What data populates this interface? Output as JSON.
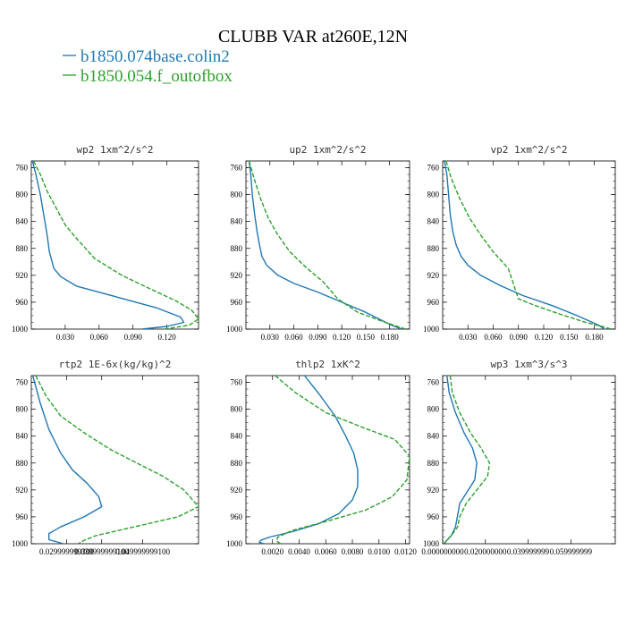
{
  "figure": {
    "title": "CLUBB VAR at260E,12N",
    "legend": [
      {
        "label": "b1850.074base.colin2",
        "color": "#1f77b4"
      },
      {
        "label": "b1850.054.f_outofbox",
        "color": "#2ca02c"
      }
    ]
  },
  "chart_data": [
    {
      "type": "line",
      "title": "wp2  1xm^2/s^2",
      "ylim": [
        1000,
        750
      ],
      "yticks": [
        760,
        800,
        840,
        880,
        920,
        960,
        1000
      ],
      "ytick_labels": [
        "760",
        "800",
        "840",
        "880",
        "920",
        "960",
        "1000"
      ],
      "xlim": [
        0,
        0.148
      ],
      "xticks": [
        0.03,
        0.06,
        0.09,
        0.12
      ],
      "xtick_labels": [
        "0.030",
        "0.060",
        "0.090",
        "0.120"
      ],
      "series": [
        {
          "name": "b1850.074base.colin2",
          "color": "#1f77b4",
          "dash": "",
          "x": [
            0.001,
            0.004,
            0.008,
            0.011,
            0.014,
            0.016,
            0.02,
            0.026,
            0.04,
            0.075,
            0.11,
            0.132,
            0.135,
            0.12,
            0.098
          ],
          "y": [
            750,
            770,
            800,
            830,
            860,
            885,
            910,
            922,
            936,
            952,
            968,
            982,
            990,
            996,
            1000
          ]
        },
        {
          "name": "b1850.054.f_outofbox",
          "color": "#2ca02c",
          "dash": "5,2",
          "x": [
            0.002,
            0.008,
            0.014,
            0.022,
            0.03,
            0.04,
            0.056,
            0.08,
            0.105,
            0.128,
            0.142,
            0.148,
            0.14,
            0.118
          ],
          "y": [
            750,
            770,
            795,
            820,
            845,
            865,
            895,
            920,
            940,
            958,
            972,
            985,
            994,
            1000
          ]
        }
      ]
    },
    {
      "type": "line",
      "title": "up2  1xm^2/s^2",
      "ylim": [
        1000,
        750
      ],
      "yticks": [
        760,
        800,
        840,
        880,
        920,
        960,
        1000
      ],
      "ytick_labels": [
        "760",
        "800",
        "840",
        "880",
        "920",
        "960",
        "1000"
      ],
      "xlim": [
        0,
        0.205
      ],
      "xticks": [
        0.03,
        0.06,
        0.09,
        0.12,
        0.15,
        0.18
      ],
      "xtick_labels": [
        "0.030",
        "0.060",
        "0.090",
        "0.120",
        "0.150",
        "0.180"
      ],
      "series": [
        {
          "name": "b1850.074base.colin2",
          "color": "#1f77b4",
          "dash": "",
          "x": [
            0.004,
            0.006,
            0.008,
            0.011,
            0.014,
            0.017,
            0.02,
            0.026,
            0.04,
            0.06,
            0.09,
            0.12,
            0.15,
            0.182,
            0.195
          ],
          "y": [
            750,
            770,
            800,
            830,
            855,
            875,
            892,
            905,
            920,
            932,
            945,
            960,
            975,
            994,
            1000
          ]
        },
        {
          "name": "b1850.054.f_outofbox",
          "color": "#2ca02c",
          "dash": "5,2",
          "x": [
            0.004,
            0.01,
            0.018,
            0.028,
            0.04,
            0.055,
            0.075,
            0.097,
            0.115,
            0.14,
            0.17,
            0.192,
            0.2
          ],
          "y": [
            750,
            775,
            805,
            835,
            860,
            885,
            908,
            930,
            955,
            975,
            988,
            997,
            1000
          ]
        }
      ]
    },
    {
      "type": "line",
      "title": "vp2  1xm^2/s^2",
      "ylim": [
        1000,
        750
      ],
      "yticks": [
        760,
        800,
        840,
        880,
        920,
        960,
        1000
      ],
      "ytick_labels": [
        "760",
        "800",
        "840",
        "880",
        "920",
        "960",
        "1000"
      ],
      "xlim": [
        0,
        0.205
      ],
      "xticks": [
        0.03,
        0.06,
        0.09,
        0.12,
        0.15,
        0.18
      ],
      "xtick_labels": [
        "0.030",
        "0.060",
        "0.090",
        "0.120",
        "0.150",
        "0.180"
      ],
      "series": [
        {
          "name": "b1850.074base.colin2",
          "color": "#1f77b4",
          "dash": "",
          "x": [
            0.002,
            0.005,
            0.007,
            0.009,
            0.012,
            0.016,
            0.022,
            0.03,
            0.045,
            0.068,
            0.095,
            0.13,
            0.16,
            0.185,
            0.192
          ],
          "y": [
            750,
            770,
            800,
            830,
            855,
            875,
            892,
            905,
            920,
            935,
            950,
            965,
            980,
            994,
            1000
          ]
        },
        {
          "name": "b1850.054.f_outofbox",
          "color": "#2ca02c",
          "dash": "5,2",
          "x": [
            0.004,
            0.01,
            0.02,
            0.032,
            0.045,
            0.06,
            0.078,
            0.09,
            0.11,
            0.14,
            0.17,
            0.192,
            0.2
          ],
          "y": [
            750,
            775,
            805,
            835,
            860,
            885,
            910,
            955,
            965,
            978,
            990,
            997,
            1000
          ]
        }
      ]
    },
    {
      "type": "line",
      "title": "rtp2  1E-6x(kg/kg)^2",
      "ylim": [
        1000,
        750
      ],
      "yticks": [
        760,
        800,
        840,
        880,
        920,
        960,
        1000
      ],
      "ytick_labels": [
        "760",
        "800",
        "840",
        "880",
        "920",
        "960",
        "1000"
      ],
      "xlim": [
        0,
        0.057
      ],
      "xticks": [
        0.0299999993,
        0.0399999991,
        0.0499999991
      ],
      "xtick_labels": [
        "0.029999999300",
        "0.039999999100",
        "0.049999999100"
      ],
      "xtick_positions": [
        0.012,
        0.024,
        0.038
      ],
      "series": [
        {
          "name": "b1850.074base.colin2",
          "color": "#1f77b4",
          "dash": "",
          "x": [
            0.0005,
            0.003,
            0.006,
            0.01,
            0.014,
            0.019,
            0.023,
            0.024,
            0.018,
            0.01,
            0.006,
            0.006,
            0.011
          ],
          "y": [
            750,
            790,
            830,
            865,
            890,
            910,
            930,
            945,
            960,
            975,
            985,
            994,
            1000
          ]
        },
        {
          "name": "b1850.054.f_outofbox",
          "color": "#2ca02c",
          "dash": "5,2",
          "x": [
            0.0015,
            0.005,
            0.01,
            0.018,
            0.027,
            0.036,
            0.045,
            0.052,
            0.057,
            0.05,
            0.035,
            0.022,
            0.018,
            0.016
          ],
          "y": [
            750,
            780,
            810,
            835,
            860,
            880,
            900,
            920,
            945,
            960,
            975,
            988,
            995,
            1000
          ]
        }
      ]
    },
    {
      "type": "line",
      "title": "thlp2  1xK^2",
      "ylim": [
        1000,
        750
      ],
      "yticks": [
        760,
        800,
        840,
        880,
        920,
        960,
        1000
      ],
      "ytick_labels": [
        "760",
        "800",
        "840",
        "880",
        "920",
        "960",
        "1000"
      ],
      "xlim": [
        0,
        0.0123
      ],
      "xticks": [
        0.002,
        0.004,
        0.006,
        0.008,
        0.01,
        0.012
      ],
      "xtick_labels": [
        "0.0020",
        "0.0040",
        "0.0060",
        "0.0080",
        "0.0100",
        "0.0120"
      ],
      "series": [
        {
          "name": "b1850.074base.colin2",
          "color": "#1f77b4",
          "dash": "",
          "x": [
            0.0044,
            0.0056,
            0.0067,
            0.0075,
            0.0081,
            0.0084,
            0.0084,
            0.008,
            0.007,
            0.0055,
            0.0035,
            0.0018,
            0.0011,
            0.001,
            0.0014
          ],
          "y": [
            750,
            780,
            810,
            840,
            865,
            890,
            915,
            935,
            955,
            970,
            982,
            990,
            995,
            998,
            1000
          ]
        },
        {
          "name": "b1850.054.f_outofbox",
          "color": "#2ca02c",
          "dash": "5,2",
          "x": [
            0.0022,
            0.0037,
            0.006,
            0.0085,
            0.0112,
            0.0123,
            0.0121,
            0.011,
            0.009,
            0.006,
            0.0035,
            0.0024,
            0.0023,
            0.0026
          ],
          "y": [
            750,
            775,
            805,
            825,
            845,
            870,
            905,
            930,
            950,
            967,
            980,
            990,
            996,
            1000
          ]
        }
      ]
    },
    {
      "type": "line",
      "title": "wp3  1xm^3/s^3",
      "ylim": [
        1000,
        750
      ],
      "yticks": [
        760,
        800,
        840,
        880,
        920,
        960,
        1000
      ],
      "ytick_labels": [
        "760",
        "800",
        "840",
        "880",
        "920",
        "960",
        "1000"
      ],
      "xlim": [
        0,
        0.0808
      ],
      "xticks": [
        0.0,
        0.02,
        0.0399999991,
        0.0599999987
      ],
      "xtick_labels": [
        "0.000000000",
        "0.020000000",
        "0.039999999",
        "0.059999999"
      ],
      "series": [
        {
          "name": "b1850.074base.colin2",
          "color": "#1f77b4",
          "dash": "",
          "x": [
            0.002,
            0.003,
            0.006,
            0.01,
            0.014,
            0.016,
            0.015,
            0.011,
            0.008,
            0.007,
            0.006,
            0.004,
            0.0005
          ],
          "y": [
            750,
            775,
            805,
            835,
            858,
            880,
            905,
            925,
            940,
            958,
            975,
            988,
            1000
          ]
        },
        {
          "name": "b1850.054.f_outofbox",
          "color": "#2ca02c",
          "dash": "5,2",
          "x": [
            0.0035,
            0.0045,
            0.008,
            0.013,
            0.018,
            0.022,
            0.021,
            0.016,
            0.011,
            0.008,
            0.007,
            0.004,
            0.0005
          ],
          "y": [
            750,
            775,
            805,
            835,
            858,
            880,
            900,
            920,
            940,
            960,
            975,
            988,
            1000
          ]
        }
      ]
    }
  ]
}
